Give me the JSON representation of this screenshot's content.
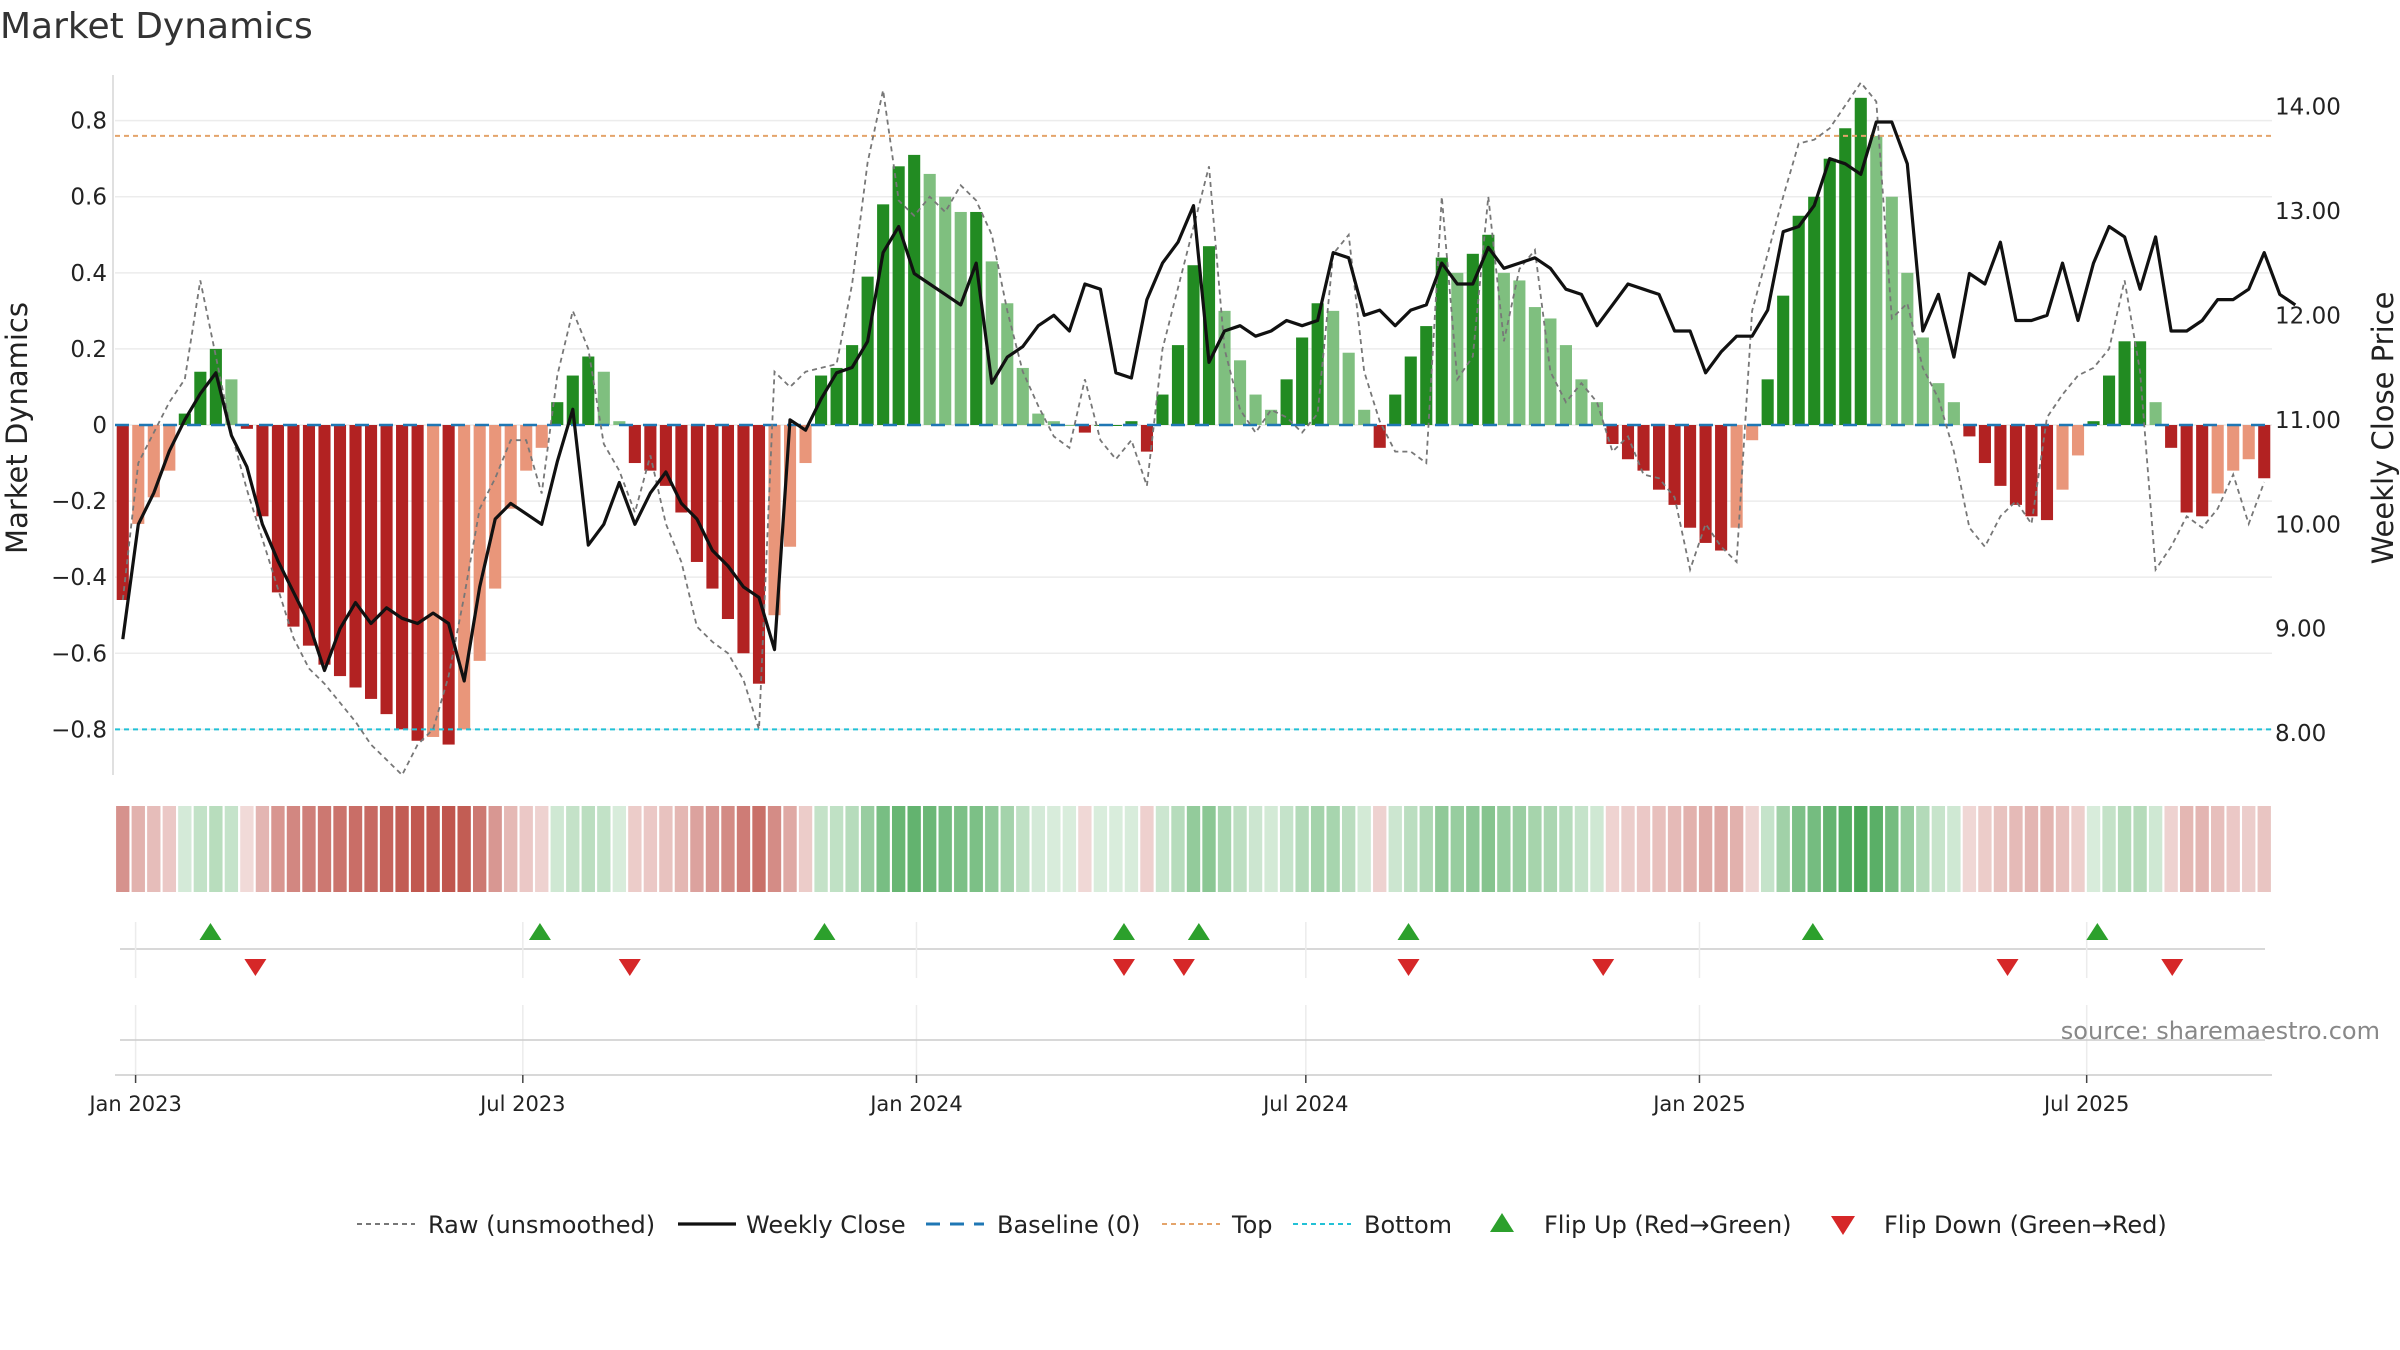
{
  "title": "Market Dynamics",
  "source": "source: sharemaestro.com",
  "colors": {
    "strong_green": "#228b22",
    "weak_green": "#7fbf7f",
    "strong_red": "#b22222",
    "weak_red": "#e9967a",
    "close_line": "#111111",
    "raw_line": "#777777",
    "baseline": "#1f77b4",
    "top_line": "#e4a46b",
    "bottom_line": "#22c1d6",
    "flip_up": "#2ca02c",
    "flip_down": "#d62728"
  },
  "chart_data": {
    "type": "bar",
    "title": "Market Dynamics",
    "ylabel": "Market Dynamics",
    "y2label": "Weekly Close Price",
    "ylim": [
      -0.92,
      0.92
    ],
    "y2lim": [
      7.6,
      14.3
    ],
    "y_ticks": [
      -0.8,
      -0.6,
      -0.4,
      -0.2,
      0,
      0.2,
      0.4,
      0.6,
      0.8
    ],
    "y_tick_labels": [
      "−0.8",
      "−0.6",
      "−0.4",
      "−0.2",
      "0",
      "0.2",
      "0.4",
      "0.6",
      "0.8"
    ],
    "y2_ticks": [
      8,
      9,
      10,
      11,
      12,
      13,
      14
    ],
    "y2_tick_labels": [
      "8.00",
      "9.00",
      "10.00",
      "11.00",
      "12.00",
      "13.00",
      "14.00"
    ],
    "x_start": "2022-12-26",
    "x_end": "2025-09-22",
    "x_ticks": [
      "2023-01-01",
      "2023-07-01",
      "2024-01-01",
      "2024-07-01",
      "2025-01-01",
      "2025-07-01"
    ],
    "x_tick_labels": [
      "Jan 2023",
      "Jul 2023",
      "Jan 2024",
      "Jul 2024",
      "Jan 2025",
      "Jul 2025"
    ],
    "top": 0.76,
    "bottom": -0.8,
    "baseline": 0,
    "grid": true,
    "legend_position": "bottom",
    "series": [
      {
        "name": "Raw (unsmoothed)",
        "style": "dashed"
      },
      {
        "name": "Weekly Close",
        "style": "solid"
      },
      {
        "name": "Baseline (0)",
        "style": "dashed"
      },
      {
        "name": "Top",
        "style": "dotted"
      },
      {
        "name": "Bottom",
        "style": "dotted"
      },
      {
        "name": "Flip Up (Red→Green)",
        "style": "marker-up"
      },
      {
        "name": "Flip Down (Green→Red)",
        "style": "marker-down"
      }
    ],
    "dynamics": [
      -0.46,
      -0.26,
      -0.19,
      -0.12,
      0.03,
      0.14,
      0.2,
      0.12,
      -0.01,
      -0.24,
      -0.44,
      -0.53,
      -0.58,
      -0.63,
      -0.66,
      -0.69,
      -0.72,
      -0.76,
      -0.8,
      -0.83,
      -0.82,
      -0.84,
      -0.8,
      -0.62,
      -0.43,
      -0.22,
      -0.12,
      -0.06,
      0.06,
      0.13,
      0.18,
      0.14,
      0.01,
      -0.1,
      -0.12,
      -0.16,
      -0.23,
      -0.36,
      -0.43,
      -0.51,
      -0.6,
      -0.68,
      -0.5,
      -0.32,
      -0.1,
      0.13,
      0.15,
      0.21,
      0.39,
      0.58,
      0.68,
      0.71,
      0.66,
      0.6,
      0.56,
      0.56,
      0.43,
      0.32,
      0.15,
      0.03,
      0.01,
      0.0,
      -0.02,
      0.0,
      0.0,
      0.01,
      -0.07,
      0.08,
      0.21,
      0.42,
      0.47,
      0.3,
      0.17,
      0.08,
      0.04,
      0.12,
      0.23,
      0.32,
      0.3,
      0.19,
      0.04,
      -0.06,
      0.08,
      0.18,
      0.26,
      0.44,
      0.4,
      0.45,
      0.5,
      0.4,
      0.38,
      0.31,
      0.28,
      0.21,
      0.12,
      0.06,
      -0.05,
      -0.09,
      -0.12,
      -0.17,
      -0.21,
      -0.27,
      -0.31,
      -0.33,
      -0.27,
      -0.04,
      0.12,
      0.34,
      0.55,
      0.6,
      0.7,
      0.78,
      0.86,
      0.76,
      0.6,
      0.4,
      0.23,
      0.11,
      0.06,
      -0.03,
      -0.1,
      -0.16,
      -0.21,
      -0.24,
      -0.25,
      -0.17,
      -0.08,
      0.01,
      0.13,
      0.22,
      0.22,
      0.06,
      -0.06,
      -0.23,
      -0.24,
      -0.18,
      -0.12,
      -0.09,
      -0.14
    ],
    "raw": [
      -0.46,
      -0.1,
      -0.02,
      0.06,
      0.12,
      0.38,
      0.18,
      -0.02,
      -0.17,
      -0.3,
      -0.43,
      -0.56,
      -0.64,
      -0.68,
      -0.73,
      -0.78,
      -0.84,
      -0.88,
      -0.92,
      -0.84,
      -0.8,
      -0.66,
      -0.45,
      -0.22,
      -0.14,
      -0.04,
      -0.04,
      -0.18,
      0.13,
      0.3,
      0.2,
      -0.05,
      -0.12,
      -0.23,
      -0.08,
      -0.26,
      -0.36,
      -0.53,
      -0.57,
      -0.6,
      -0.67,
      -0.8,
      0.14,
      0.1,
      0.14,
      0.15,
      0.16,
      0.37,
      0.69,
      0.88,
      0.59,
      0.55,
      0.6,
      0.56,
      0.63,
      0.59,
      0.5,
      0.3,
      0.14,
      0.05,
      -0.03,
      -0.06,
      0.12,
      -0.04,
      -0.09,
      -0.04,
      -0.16,
      0.2,
      0.36,
      0.52,
      0.68,
      0.2,
      0.04,
      -0.02,
      0.04,
      0.02,
      -0.02,
      0.03,
      0.45,
      0.5,
      0.14,
      0.01,
      -0.07,
      -0.07,
      -0.1,
      0.6,
      0.12,
      0.18,
      0.6,
      0.22,
      0.41,
      0.46,
      0.14,
      0.06,
      0.11,
      0.06,
      -0.07,
      -0.03,
      -0.13,
      -0.14,
      -0.19,
      -0.38,
      -0.26,
      -0.32,
      -0.36,
      0.3,
      0.45,
      0.6,
      0.74,
      0.75,
      0.78,
      0.84,
      0.9,
      0.85,
      0.28,
      0.32,
      0.15,
      0.07,
      -0.07,
      -0.27,
      -0.32,
      -0.24,
      -0.2,
      -0.26,
      0.02,
      0.08,
      0.13,
      0.15,
      0.2,
      0.38,
      0.14,
      -0.38,
      -0.32,
      -0.24,
      -0.27,
      -0.22,
      -0.13,
      -0.26,
      -0.15
    ],
    "weekly_close": [
      8.9,
      10.0,
      10.3,
      10.7,
      11.0,
      11.25,
      11.45,
      10.85,
      10.55,
      10.0,
      9.65,
      9.35,
      9.05,
      8.6,
      9.0,
      9.25,
      9.05,
      9.2,
      9.1,
      9.05,
      9.15,
      9.05,
      8.5,
      9.4,
      10.05,
      10.2,
      10.1,
      10.0,
      10.6,
      11.1,
      9.8,
      10.0,
      10.4,
      10.0,
      10.3,
      10.5,
      10.2,
      10.05,
      9.75,
      9.6,
      9.4,
      9.3,
      8.8,
      11.0,
      10.9,
      11.2,
      11.45,
      11.5,
      11.75,
      12.6,
      12.85,
      12.4,
      12.3,
      12.2,
      12.1,
      12.5,
      11.35,
      11.6,
      11.7,
      11.9,
      12.0,
      11.85,
      12.3,
      12.25,
      11.45,
      11.4,
      12.15,
      12.5,
      12.7,
      13.05,
      11.55,
      11.85,
      11.9,
      11.8,
      11.85,
      11.95,
      11.9,
      11.95,
      12.6,
      12.55,
      12.0,
      12.05,
      11.9,
      12.05,
      12.1,
      12.5,
      12.3,
      12.3,
      12.65,
      12.45,
      12.5,
      12.55,
      12.45,
      12.25,
      12.2,
      11.9,
      12.1,
      12.3,
      12.25,
      12.2,
      11.85,
      11.85,
      11.45,
      11.65,
      11.8,
      11.8,
      12.05,
      12.8,
      12.85,
      13.05,
      13.5,
      13.45,
      13.35,
      13.85,
      13.85,
      13.45,
      11.85,
      12.2,
      11.6,
      12.4,
      12.3,
      12.7,
      11.95,
      11.95,
      12.0,
      12.5,
      11.95,
      12.5,
      12.85,
      12.75,
      12.25,
      12.75,
      11.85,
      11.85,
      11.95,
      12.15,
      12.15,
      12.25,
      12.6,
      12.2,
      12.1
    ],
    "flip_up_dates": [
      "2023-02-05",
      "2023-07-09",
      "2023-11-19",
      "2024-04-07",
      "2024-05-12",
      "2024-08-18",
      "2025-02-23",
      "2025-07-06"
    ],
    "flip_down_dates": [
      "2023-02-26",
      "2023-08-20",
      "2024-04-07",
      "2024-05-05",
      "2024-08-18",
      "2024-11-17",
      "2025-05-25",
      "2025-08-10"
    ]
  }
}
